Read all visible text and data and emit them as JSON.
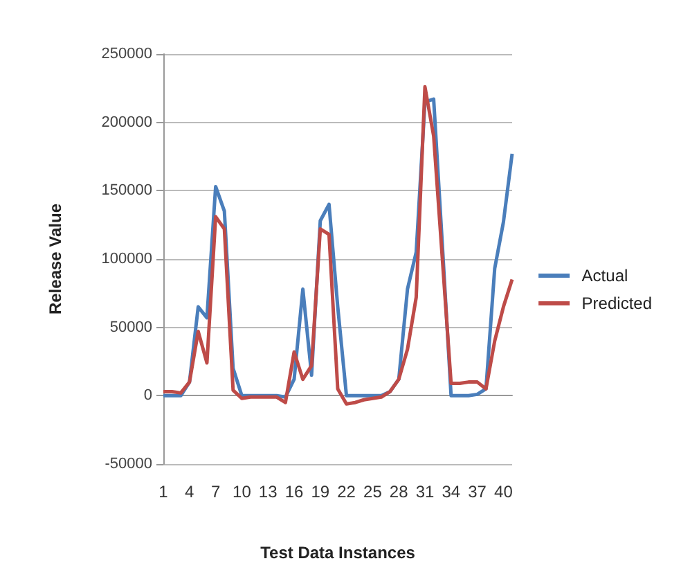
{
  "chart_data": {
    "type": "line",
    "xlabel": "Test Data Instances",
    "ylabel": "Release Value",
    "categories": [
      "1",
      null,
      null,
      "4",
      null,
      null,
      "7",
      null,
      null,
      "10",
      null,
      null,
      "13",
      null,
      null,
      "16",
      null,
      null,
      "19",
      null,
      null,
      "22",
      null,
      null,
      "25",
      null,
      null,
      "28",
      null,
      null,
      "31",
      null,
      null,
      "34",
      null,
      null,
      "37",
      null,
      null,
      "40",
      null
    ],
    "series": [
      {
        "name": "Actual",
        "color": "#4a7ebb",
        "values": [
          0,
          0,
          0,
          10000,
          65000,
          57000,
          153000,
          135000,
          20000,
          0,
          0,
          0,
          0,
          0,
          -1000,
          12000,
          78000,
          15000,
          128000,
          140000,
          65000,
          0,
          0,
          0,
          0,
          0,
          3000,
          12000,
          78000,
          105000,
          215000,
          217000,
          110000,
          0,
          0,
          0,
          1000,
          5000,
          93000,
          127000,
          177000
        ]
      },
      {
        "name": "Predicted",
        "color": "#be4b48",
        "values": [
          3000,
          3000,
          2000,
          10000,
          47000,
          24000,
          131000,
          122000,
          4000,
          -2000,
          -1000,
          -1000,
          -1000,
          -1000,
          -5000,
          32000,
          12000,
          22000,
          122000,
          118000,
          5000,
          -6000,
          -5000,
          -3000,
          -2000,
          -1000,
          3000,
          12000,
          34000,
          72000,
          226000,
          190000,
          100000,
          9000,
          9000,
          10000,
          10000,
          5000,
          40000,
          65000,
          85000
        ]
      }
    ],
    "ylim": [
      -50000,
      250000
    ],
    "yticks": [
      -50000,
      0,
      50000,
      100000,
      150000,
      200000,
      250000
    ],
    "grid": "y",
    "legend": "right",
    "marker": "none",
    "line_style": "solid"
  }
}
